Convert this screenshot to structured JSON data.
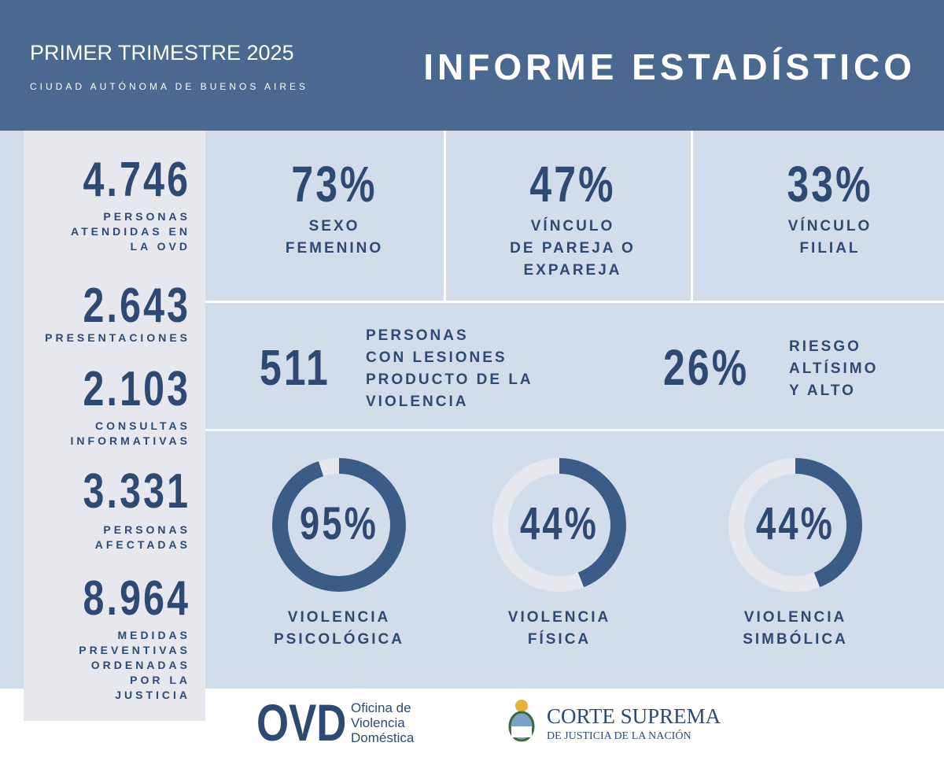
{
  "header": {
    "period": "PRIMER TRIMESTRE 2025",
    "location": "CIUDAD AUTÓNOMA DE BUENOS AIRES",
    "title": "INFORME ESTADÍSTICO"
  },
  "side_stats": [
    {
      "number": "4.746",
      "label": [
        "PERSONAS",
        "ATENDIDAS EN",
        "LA OVD"
      ]
    },
    {
      "number": "2.643",
      "label": [
        "PRESENTACIONES"
      ]
    },
    {
      "number": "2.103",
      "label": [
        "CONSULTAS",
        "INFORMATIVAS"
      ]
    },
    {
      "number": "3.331",
      "label": [
        "PERSONAS",
        "AFECTADAS"
      ]
    },
    {
      "number": "8.964",
      "label": [
        "MEDIDAS",
        "PREVENTIVAS",
        "ORDENADAS",
        "POR LA",
        "JUSTICIA"
      ]
    }
  ],
  "top_stats": [
    {
      "number": "73%",
      "label": [
        "SEXO",
        "FEMENINO"
      ]
    },
    {
      "number": "47%",
      "label": [
        "VÍNCULO",
        "DE PAREJA O",
        "EXPAREJA"
      ]
    },
    {
      "number": "33%",
      "label": [
        "VÍNCULO",
        "FILIAL"
      ]
    }
  ],
  "middle_stats": [
    {
      "number": "511",
      "label": [
        "PERSONAS",
        "CON LESIONES",
        "PRODUCTO DE LA",
        "VIOLENCIA"
      ]
    },
    {
      "number": "26%",
      "label": [
        "RIESGO",
        "ALTÍSIMO",
        "Y ALTO"
      ]
    }
  ],
  "donuts": [
    {
      "value": 95,
      "label": "95%",
      "caption": [
        "VIOLENCIA",
        "PSICOLÓGICA"
      ]
    },
    {
      "value": 44,
      "label": "44%",
      "caption": [
        "VIOLENCIA",
        "FÍSICA"
      ]
    },
    {
      "value": 44,
      "label": "44%",
      "caption": [
        "VIOLENCIA",
        "SIMBÓLICA"
      ]
    }
  ],
  "footer": {
    "ovd_logo": "OVD",
    "ovd_name": [
      "Oficina de",
      "Violencia",
      "Doméstica"
    ],
    "court_name": "CORTE SUPREMA",
    "court_subtitle": "DE JUSTICIA DE LA NACIÓN"
  }
}
